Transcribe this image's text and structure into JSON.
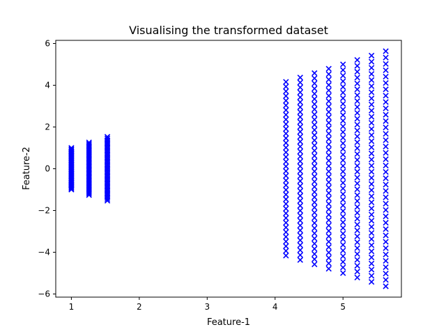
{
  "chart_data": {
    "type": "scatter",
    "title": "Visualising the transformed dataset",
    "xlabel": "Feature-1",
    "ylabel": "Feature-2",
    "xlim": [
      0.77,
      5.86
    ],
    "ylim": [
      -6.15,
      6.15
    ],
    "xticks": [
      1,
      2,
      3,
      4,
      5
    ],
    "yticks": [
      -6,
      -4,
      -2,
      0,
      2,
      4,
      6
    ],
    "marker": "x",
    "color": "#0000ff",
    "grid": false,
    "legend": false,
    "series": [
      {
        "columns": [
          {
            "x": 1.0,
            "ymin": -1.0,
            "ymax": 1.0
          },
          {
            "x": 1.26,
            "ymin": -1.26,
            "ymax": 1.26
          },
          {
            "x": 1.53,
            "ymin": -1.53,
            "ymax": 1.53
          },
          {
            "x": 4.16,
            "ymin": -4.16,
            "ymax": 4.16
          },
          {
            "x": 4.37,
            "ymin": -4.37,
            "ymax": 4.37
          },
          {
            "x": 4.58,
            "ymin": -4.58,
            "ymax": 4.58
          },
          {
            "x": 4.79,
            "ymin": -4.79,
            "ymax": 4.79
          },
          {
            "x": 5.0,
            "ymin": -5.0,
            "ymax": 5.0
          },
          {
            "x": 5.21,
            "ymin": -5.21,
            "ymax": 5.21
          },
          {
            "x": 5.42,
            "ymin": -5.42,
            "ymax": 5.42
          },
          {
            "x": 5.63,
            "ymin": -5.63,
            "ymax": 5.63
          }
        ]
      }
    ]
  }
}
